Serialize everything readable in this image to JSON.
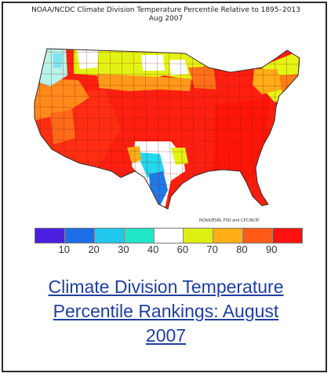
{
  "map": {
    "title_line1": "NOAA/NCDC Climate Division Temperature Percentile Relative to 1895–2013",
    "title_line2": "Aug 2007",
    "credit": "NOAA/ESRL PSD and CPC/NCEI"
  },
  "legend": {
    "colors": [
      "#4b1fe0",
      "#1f6ee8",
      "#20c8ee",
      "#22e6c8",
      "#ffffff",
      "#dcf00f",
      "#ffae18",
      "#ff5a18",
      "#ff1010"
    ],
    "labels": [
      "10",
      "20",
      "30",
      "40",
      "60",
      "70",
      "80",
      "90"
    ]
  },
  "link": {
    "line1": "Climate Division Temperature",
    "line2": "Percentile Rankings: August",
    "line3": "2007"
  },
  "colors": {
    "link": "#1f3f9f",
    "frame": "#2b2b2b"
  }
}
